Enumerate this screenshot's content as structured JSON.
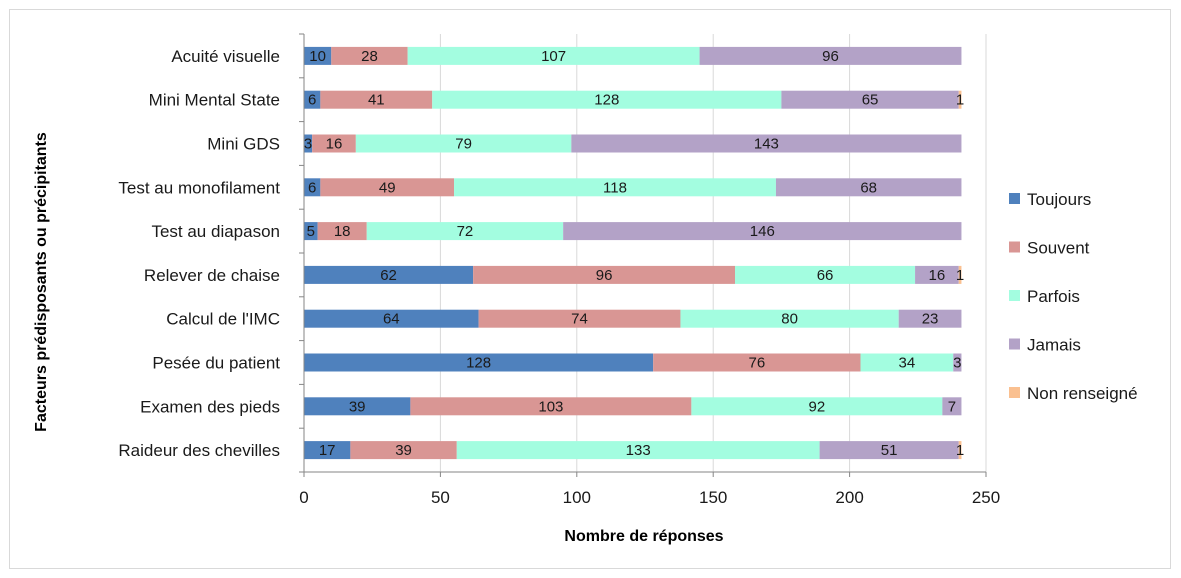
{
  "chart_data": {
    "type": "bar",
    "orientation": "horizontal",
    "stacked": true,
    "title": "",
    "xlabel": "Nombre de réponses",
    "ylabel": "Facteurs prédisposants ou précipitants",
    "xlim": [
      0,
      250
    ],
    "xticks": [
      0,
      50,
      100,
      150,
      200,
      250
    ],
    "grid": "vertical major gridlines",
    "legend_position": "right",
    "categories": [
      "Acuité visuelle",
      "Mini Mental State",
      "Mini GDS",
      "Test au monofilament",
      "Test au diapason",
      "Relever de chaise",
      "Calcul de l'IMC",
      "Pesée du patient",
      "Examen des pieds",
      "Raideur des chevilles"
    ],
    "series": [
      {
        "name": "Toujours",
        "color": "#4f81bd",
        "values": [
          10,
          6,
          3,
          6,
          5,
          62,
          64,
          128,
          39,
          17
        ]
      },
      {
        "name": "Souvent",
        "color": "#d99694",
        "values": [
          28,
          41,
          16,
          49,
          18,
          96,
          74,
          76,
          103,
          39
        ]
      },
      {
        "name": "Parfois",
        "color": "#a3fde0",
        "values": [
          107,
          128,
          79,
          118,
          72,
          66,
          80,
          34,
          92,
          133
        ]
      },
      {
        "name": "Jamais",
        "color": "#b3a2c7",
        "values": [
          96,
          65,
          143,
          68,
          146,
          16,
          23,
          3,
          7,
          51
        ]
      },
      {
        "name": "Non renseigné",
        "color": "#fac090",
        "values": [
          0,
          1,
          0,
          0,
          0,
          1,
          0,
          0,
          0,
          1
        ]
      }
    ]
  }
}
